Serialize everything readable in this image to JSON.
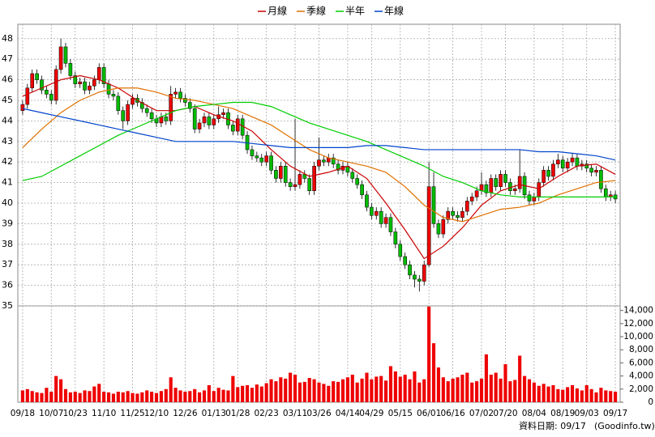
{
  "chart_data": {
    "type": "candlestick",
    "open": [
      44.5,
      44.8,
      45.6,
      46.3,
      46.0,
      45.5,
      45.3,
      45.0,
      46.5,
      47.6,
      46.8,
      46.2,
      45.8,
      45.9,
      45.5,
      45.7,
      46.0,
      46.6,
      45.8,
      45.3,
      45.2,
      44.5,
      44.0,
      44.8,
      45.1,
      44.9,
      44.6,
      44.4,
      44.1,
      43.9,
      44.2,
      44.0,
      45.3,
      45.4,
      45.1,
      44.9,
      44.6,
      43.6,
      43.9,
      44.2,
      43.8,
      44.1,
      44.3,
      44.4,
      43.8,
      43.5,
      44.1,
      43.3,
      42.6,
      42.3,
      42.2,
      42.0,
      42.3,
      41.6,
      41.2,
      41.8,
      41.0,
      40.8,
      40.9,
      41.4,
      41.2,
      40.6,
      41.8,
      42.1,
      42.0,
      42.2,
      41.9,
      41.6,
      41.8,
      41.5,
      41.2,
      40.9,
      40.4,
      39.8,
      39.4,
      39.6,
      39.0,
      39.3,
      38.6,
      38.0,
      37.4,
      37.0,
      36.5,
      36.3,
      36.2,
      37.0,
      40.8,
      39.0,
      38.5,
      39.2,
      39.6,
      39.4,
      39.3,
      39.6,
      40.1,
      40.3,
      40.6,
      40.9,
      40.5,
      41.2,
      40.8,
      41.4,
      41.0,
      40.6,
      40.7,
      41.3,
      40.4,
      40.1,
      40.3,
      41.0,
      41.6,
      41.3,
      41.9,
      42.1,
      41.7,
      42.0,
      42.2,
      41.8,
      41.9,
      41.7,
      41.5,
      41.6,
      40.7,
      40.3,
      40.4
    ],
    "high": [
      45.0,
      45.8,
      46.5,
      46.5,
      46.2,
      45.7,
      45.5,
      46.7,
      48.0,
      47.8,
      47.0,
      46.4,
      46.1,
      46.1,
      45.9,
      46.2,
      46.8,
      46.8,
      46.0,
      45.5,
      45.4,
      44.7,
      45.0,
      45.3,
      45.3,
      45.1,
      44.8,
      44.6,
      44.3,
      44.4,
      44.4,
      45.7,
      45.6,
      45.6,
      45.3,
      45.1,
      44.8,
      44.1,
      44.4,
      44.4,
      44.3,
      44.7,
      44.6,
      44.6,
      44.0,
      44.3,
      44.3,
      43.5,
      42.8,
      42.5,
      42.4,
      42.5,
      42.5,
      41.8,
      42.0,
      42.0,
      41.2,
      44.1,
      41.6,
      41.6,
      41.4,
      42.0,
      43.2,
      42.3,
      42.4,
      42.4,
      42.1,
      42.0,
      42.0,
      41.7,
      41.4,
      41.1,
      40.6,
      40.0,
      39.8,
      39.8,
      39.5,
      39.5,
      38.8,
      38.2,
      37.6,
      37.2,
      36.7,
      36.5,
      37.2,
      42.0,
      41.5,
      39.2,
      39.4,
      39.8,
      39.8,
      39.6,
      39.8,
      40.3,
      40.5,
      40.8,
      41.5,
      41.1,
      41.4,
      41.4,
      41.6,
      41.6,
      41.2,
      40.9,
      42.6,
      41.5,
      40.6,
      40.5,
      41.2,
      41.8,
      41.8,
      42.1,
      42.4,
      42.3,
      42.2,
      42.4,
      42.4,
      42.1,
      42.1,
      41.9,
      41.8,
      41.8,
      40.9,
      40.6,
      40.6
    ],
    "low": [
      44.3,
      44.6,
      45.4,
      45.8,
      45.3,
      45.1,
      44.8,
      44.8,
      46.3,
      46.6,
      46.0,
      45.6,
      45.6,
      45.3,
      45.3,
      45.5,
      45.8,
      45.6,
      45.1,
      45.0,
      44.3,
      43.6,
      43.8,
      44.6,
      44.7,
      44.4,
      44.2,
      43.9,
      43.7,
      43.7,
      43.8,
      43.8,
      45.1,
      44.9,
      44.7,
      44.4,
      43.4,
      43.4,
      43.7,
      43.6,
      43.6,
      43.9,
      44.1,
      43.6,
      43.3,
      43.3,
      43.1,
      42.4,
      42.1,
      42.0,
      41.8,
      41.8,
      41.4,
      41.0,
      41.0,
      40.8,
      40.6,
      40.6,
      40.7,
      41.0,
      40.4,
      40.4,
      41.6,
      41.8,
      41.8,
      41.7,
      41.4,
      41.4,
      41.3,
      41.0,
      40.7,
      40.2,
      39.6,
      39.2,
      39.2,
      38.8,
      38.8,
      38.4,
      37.8,
      37.2,
      36.8,
      36.3,
      35.9,
      35.7,
      36.0,
      36.9,
      38.8,
      38.3,
      38.3,
      39.0,
      39.2,
      39.1,
      39.1,
      39.4,
      39.9,
      40.1,
      40.4,
      40.3,
      40.3,
      40.6,
      40.6,
      40.8,
      40.4,
      40.4,
      40.5,
      40.2,
      39.9,
      39.9,
      40.1,
      40.8,
      41.1,
      41.1,
      41.7,
      41.5,
      41.5,
      41.8,
      41.6,
      41.6,
      41.5,
      41.3,
      41.3,
      40.5,
      40.1,
      40.1,
      40.0
    ],
    "close": [
      44.8,
      45.6,
      46.3,
      46.0,
      45.5,
      45.3,
      45.0,
      46.5,
      47.6,
      46.8,
      46.2,
      45.8,
      45.9,
      45.5,
      45.7,
      46.0,
      46.6,
      45.8,
      45.3,
      45.2,
      44.5,
      44.0,
      44.8,
      45.1,
      44.9,
      44.6,
      44.4,
      44.1,
      43.9,
      44.2,
      44.0,
      45.3,
      45.4,
      45.1,
      44.9,
      44.6,
      43.6,
      43.9,
      44.2,
      43.8,
      44.1,
      44.3,
      44.4,
      43.8,
      43.5,
      44.1,
      43.3,
      42.6,
      42.3,
      42.2,
      42.0,
      42.3,
      41.6,
      41.2,
      41.8,
      41.0,
      40.8,
      40.9,
      41.4,
      41.2,
      40.6,
      41.8,
      42.1,
      42.0,
      42.2,
      41.9,
      41.6,
      41.8,
      41.5,
      41.2,
      40.9,
      40.4,
      39.8,
      39.4,
      39.6,
      39.0,
      39.3,
      38.6,
      38.0,
      37.4,
      37.0,
      36.5,
      36.3,
      36.2,
      37.0,
      40.8,
      39.0,
      38.5,
      39.2,
      39.6,
      39.4,
      39.3,
      39.6,
      40.1,
      40.3,
      40.6,
      40.9,
      40.5,
      41.2,
      40.8,
      41.4,
      41.0,
      40.6,
      40.7,
      41.3,
      40.4,
      40.1,
      40.3,
      41.0,
      41.6,
      41.3,
      41.9,
      42.1,
      41.7,
      42.0,
      42.2,
      41.8,
      41.9,
      41.7,
      41.5,
      41.6,
      40.7,
      40.3,
      40.4,
      40.2
    ],
    "volume": [
      1800,
      2000,
      1700,
      1500,
      1400,
      2200,
      1600,
      4000,
      3500,
      2000,
      1500,
      1600,
      1400,
      1800,
      1700,
      2400,
      2800,
      1600,
      1500,
      1300,
      1600,
      1500,
      1700,
      1400,
      1300,
      1500,
      1800,
      1600,
      1400,
      1700,
      2000,
      3800,
      2200,
      1800,
      1600,
      1700,
      2000,
      1500,
      1800,
      2600,
      1700,
      2200,
      1900,
      1800,
      4000,
      2300,
      2500,
      2600,
      2200,
      2700,
      2400,
      2900,
      3500,
      3200,
      3800,
      3600,
      4500,
      4200,
      3000,
      3100,
      3700,
      3500,
      3000,
      2800,
      2500,
      3200,
      3100,
      3500,
      3800,
      4200,
      3000,
      3600,
      4500,
      3500,
      3900,
      4000,
      3300,
      5500,
      4700,
      3900,
      4200,
      3500,
      4700,
      3000,
      3500,
      14600,
      9000,
      5300,
      3800,
      3200,
      3600,
      3800,
      4200,
      4500,
      3000,
      3200,
      3600,
      7300,
      4200,
      4500,
      3600,
      5800,
      3200,
      3400,
      7100,
      4000,
      3500,
      3000,
      2500,
      2800,
      2400,
      2600,
      2000,
      1900,
      2300,
      2600,
      2100,
      1800,
      2600,
      2000,
      1500,
      2200,
      1800,
      1700,
      1600
    ],
    "up_color": "#ee0000",
    "down_color": "#00bb00",
    "volume_color": "#ee0000",
    "series": [
      {
        "name": "月線",
        "color": "#cc0000",
        "x": [
          0,
          4,
          8,
          12,
          16,
          20,
          24,
          28,
          32,
          36,
          40,
          44,
          48,
          52,
          56,
          60,
          64,
          68,
          72,
          76,
          80,
          84,
          88,
          92,
          96,
          100,
          104,
          108,
          112,
          116,
          120,
          124
        ],
        "values": [
          45.2,
          45.6,
          46.0,
          46.2,
          46.0,
          45.6,
          45.0,
          44.5,
          44.5,
          44.7,
          44.3,
          44.0,
          43.5,
          42.6,
          41.8,
          41.3,
          41.5,
          41.8,
          41.2,
          40.0,
          38.7,
          37.3,
          37.9,
          38.8,
          39.9,
          40.6,
          40.9,
          40.7,
          41.3,
          41.8,
          41.9,
          41.4
        ]
      },
      {
        "name": "季線",
        "color": "#e07000",
        "x": [
          0,
          4,
          8,
          12,
          16,
          20,
          24,
          28,
          32,
          36,
          40,
          44,
          48,
          52,
          56,
          60,
          64,
          68,
          72,
          76,
          80,
          84,
          88,
          92,
          96,
          100,
          104,
          108,
          112,
          116,
          120,
          124
        ],
        "values": [
          42.7,
          43.6,
          44.4,
          45.0,
          45.4,
          45.6,
          45.6,
          45.4,
          45.1,
          45.0,
          44.8,
          44.6,
          44.2,
          43.8,
          43.2,
          42.6,
          42.2,
          42.0,
          41.8,
          41.5,
          40.8,
          39.9,
          39.3,
          39.1,
          39.4,
          39.7,
          39.8,
          40.0,
          40.4,
          40.7,
          41.0,
          41.1
        ]
      },
      {
        "name": "半年",
        "color": "#00cc00",
        "x": [
          0,
          4,
          8,
          12,
          16,
          20,
          24,
          28,
          32,
          36,
          40,
          44,
          48,
          52,
          56,
          60,
          64,
          68,
          72,
          76,
          80,
          84,
          88,
          92,
          96,
          100,
          104,
          108,
          112,
          116,
          120,
          124
        ],
        "values": [
          41.1,
          41.3,
          41.8,
          42.3,
          42.8,
          43.3,
          43.7,
          44.1,
          44.5,
          44.7,
          44.8,
          44.9,
          44.9,
          44.7,
          44.3,
          43.9,
          43.6,
          43.3,
          43.0,
          42.6,
          42.2,
          41.8,
          41.3,
          41.0,
          40.6,
          40.4,
          40.3,
          40.3,
          40.3,
          40.3,
          40.3,
          40.3
        ]
      },
      {
        "name": "年線",
        "color": "#0044cc",
        "x": [
          0,
          4,
          8,
          12,
          16,
          20,
          24,
          28,
          32,
          36,
          40,
          44,
          48,
          52,
          56,
          60,
          64,
          68,
          72,
          76,
          80,
          84,
          88,
          92,
          96,
          100,
          104,
          108,
          112,
          116,
          120,
          124
        ],
        "values": [
          44.6,
          44.4,
          44.2,
          44.0,
          43.8,
          43.6,
          43.4,
          43.2,
          43.0,
          43.0,
          43.0,
          43.0,
          42.9,
          42.8,
          42.7,
          42.7,
          42.7,
          42.7,
          42.8,
          42.8,
          42.7,
          42.6,
          42.6,
          42.6,
          42.6,
          42.6,
          42.6,
          42.5,
          42.5,
          42.4,
          42.3,
          42.1
        ]
      }
    ],
    "xlim": [
      -1,
      125
    ],
    "xticks": [
      {
        "value": 0,
        "label": "09/18"
      },
      {
        "value": 6,
        "label": "10/07"
      },
      {
        "value": 11,
        "label": "10/23"
      },
      {
        "value": 17,
        "label": "11/10"
      },
      {
        "value": 23,
        "label": "11/25"
      },
      {
        "value": 28,
        "label": "12/10"
      },
      {
        "value": 34,
        "label": "12/26"
      },
      {
        "value": 40,
        "label": "01/13"
      },
      {
        "value": 45,
        "label": "01/28"
      },
      {
        "value": 51,
        "label": "02/23"
      },
      {
        "value": 57,
        "label": "03/11"
      },
      {
        "value": 62,
        "label": "03/26"
      },
      {
        "value": 68,
        "label": "04/14"
      },
      {
        "value": 73,
        "label": "04/29"
      },
      {
        "value": 79,
        "label": "05/15"
      },
      {
        "value": 85,
        "label": "06/01"
      },
      {
        "value": 90,
        "label": "06/16"
      },
      {
        "value": 96,
        "label": "07/02"
      },
      {
        "value": 101,
        "label": "07/20"
      },
      {
        "value": 107,
        "label": "08/04"
      },
      {
        "value": 113,
        "label": "08/19"
      },
      {
        "value": 118,
        "label": "09/03"
      },
      {
        "value": 124,
        "label": "09/17"
      }
    ],
    "ylim": [
      35,
      48.7
    ],
    "yticks": [
      35,
      36,
      37,
      38,
      39,
      40,
      41,
      42,
      43,
      44,
      45,
      46,
      47,
      48
    ],
    "y2lim": [
      0,
      14700
    ],
    "y2ticks": [
      0,
      {
        "value": 2000,
        "label": "2,000"
      },
      {
        "value": 4000,
        "label": "4,000"
      },
      {
        "value": 6000,
        "label": "6,000"
      },
      {
        "value": 8000,
        "label": "8,000"
      },
      {
        "value": 10000,
        "label": "10,000"
      },
      {
        "value": 12000,
        "label": "12,000"
      },
      {
        "value": 14000,
        "label": "14,000"
      }
    ],
    "grid": true,
    "footer": "資料日期: 09/17",
    "source": "(Goodinfo.tw)"
  }
}
